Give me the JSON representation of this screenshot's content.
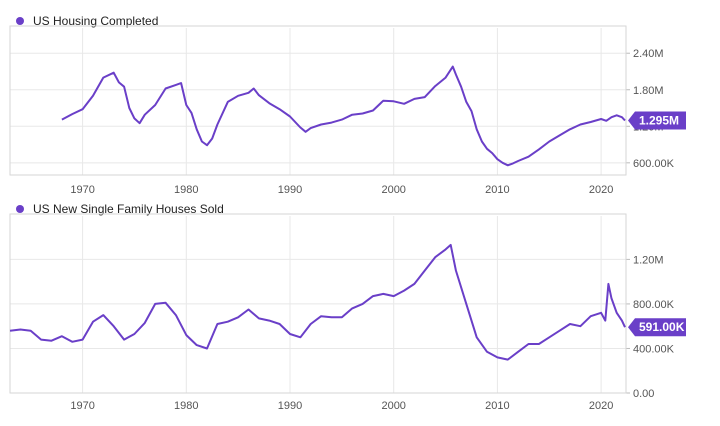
{
  "chart_data": [
    {
      "type": "line",
      "title": "US Housing Completed",
      "color": "#6a3fc8",
      "last_value_label": "1.295M",
      "xlim": [
        1963.0,
        2022.4
      ],
      "ylim": [
        400000,
        2650000
      ],
      "y_ticks": [
        {
          "value": 600000,
          "label": "600.00K"
        },
        {
          "value": 1200000,
          "label": "1.20M"
        },
        {
          "value": 1800000,
          "label": "1.80M"
        },
        {
          "value": 2400000,
          "label": "2.40M"
        }
      ],
      "x_ticks": [
        {
          "value": 1970,
          "label": "1970"
        },
        {
          "value": 1980,
          "label": "1980"
        },
        {
          "value": 1990,
          "label": "1990"
        },
        {
          "value": 2000,
          "label": "2000"
        },
        {
          "value": 2010,
          "label": "2010"
        },
        {
          "value": 2020,
          "label": "2020"
        }
      ],
      "grid": true,
      "x": [
        1968.0,
        1969.0,
        1970.0,
        1971.0,
        1972.0,
        1973.0,
        1973.5,
        1974.0,
        1974.5,
        1975.0,
        1975.5,
        1976.0,
        1977.0,
        1978.0,
        1979.0,
        1979.5,
        1980.0,
        1980.5,
        1981.0,
        1981.5,
        1982.0,
        1982.5,
        1983.0,
        1984.0,
        1985.0,
        1986.0,
        1986.5,
        1987.0,
        1988.0,
        1989.0,
        1990.0,
        1991.0,
        1991.5,
        1992.0,
        1993.0,
        1994.0,
        1995.0,
        1996.0,
        1997.0,
        1998.0,
        1999.0,
        2000.0,
        2001.0,
        2002.0,
        2003.0,
        2004.0,
        2005.0,
        2005.7,
        2006.0,
        2006.5,
        2007.0,
        2007.5,
        2008.0,
        2008.5,
        2009.0,
        2009.5,
        2010.0,
        2010.5,
        2011.0,
        2011.5,
        2012.0,
        2013.0,
        2014.0,
        2015.0,
        2016.0,
        2017.0,
        2018.0,
        2019.0,
        2020.0,
        2020.5,
        2021.0,
        2021.5,
        2022.0,
        2022.3
      ],
      "y": [
        1310000,
        1400000,
        1480000,
        1700000,
        2000000,
        2080000,
        1920000,
        1850000,
        1500000,
        1330000,
        1250000,
        1390000,
        1550000,
        1820000,
        1880000,
        1910000,
        1550000,
        1420000,
        1150000,
        950000,
        890000,
        1000000,
        1230000,
        1600000,
        1700000,
        1750000,
        1820000,
        1710000,
        1580000,
        1480000,
        1360000,
        1180000,
        1110000,
        1170000,
        1230000,
        1260000,
        1310000,
        1390000,
        1410000,
        1460000,
        1620000,
        1610000,
        1570000,
        1650000,
        1680000,
        1860000,
        2000000,
        2180000,
        2050000,
        1850000,
        1600000,
        1450000,
        1150000,
        950000,
        830000,
        760000,
        660000,
        600000,
        560000,
        590000,
        630000,
        700000,
        820000,
        950000,
        1050000,
        1150000,
        1230000,
        1270000,
        1320000,
        1290000,
        1350000,
        1380000,
        1350000,
        1295000
      ]
    },
    {
      "type": "line",
      "title": "US New Single Family Houses Sold",
      "color": "#6a3fc8",
      "last_value_label": "591.00K",
      "xlim": [
        1963.0,
        2022.4
      ],
      "ylim": [
        0,
        1500000
      ],
      "y_ticks": [
        {
          "value": 0,
          "label": "0.00"
        },
        {
          "value": 400000,
          "label": "400.00K"
        },
        {
          "value": 800000,
          "label": "800.00K"
        },
        {
          "value": 1200000,
          "label": "1.20M"
        }
      ],
      "x_ticks": [
        {
          "value": 1970,
          "label": "1970"
        },
        {
          "value": 1980,
          "label": "1980"
        },
        {
          "value": 1990,
          "label": "1990"
        },
        {
          "value": 2000,
          "label": "2000"
        },
        {
          "value": 2010,
          "label": "2010"
        },
        {
          "value": 2020,
          "label": "2020"
        }
      ],
      "grid": true,
      "x": [
        1963.0,
        1964.0,
        1965.0,
        1966.0,
        1967.0,
        1968.0,
        1969.0,
        1970.0,
        1971.0,
        1972.0,
        1973.0,
        1974.0,
        1975.0,
        1976.0,
        1977.0,
        1978.0,
        1979.0,
        1980.0,
        1981.0,
        1982.0,
        1983.0,
        1984.0,
        1985.0,
        1986.0,
        1987.0,
        1988.0,
        1989.0,
        1990.0,
        1991.0,
        1992.0,
        1993.0,
        1994.0,
        1995.0,
        1996.0,
        1997.0,
        1998.0,
        1999.0,
        2000.0,
        2001.0,
        2002.0,
        2003.0,
        2004.0,
        2005.0,
        2005.5,
        2006.0,
        2007.0,
        2008.0,
        2009.0,
        2010.0,
        2011.0,
        2012.0,
        2013.0,
        2014.0,
        2015.0,
        2016.0,
        2017.0,
        2018.0,
        2019.0,
        2020.0,
        2020.4,
        2020.7,
        2021.0,
        2021.5,
        2022.0,
        2022.3
      ],
      "y": [
        560000,
        570000,
        560000,
        480000,
        470000,
        510000,
        460000,
        480000,
        640000,
        700000,
        600000,
        480000,
        530000,
        630000,
        800000,
        810000,
        700000,
        520000,
        430000,
        400000,
        620000,
        640000,
        680000,
        750000,
        670000,
        650000,
        620000,
        530000,
        500000,
        620000,
        690000,
        680000,
        680000,
        760000,
        800000,
        870000,
        890000,
        870000,
        920000,
        980000,
        1100000,
        1220000,
        1290000,
        1330000,
        1100000,
        800000,
        500000,
        370000,
        320000,
        300000,
        370000,
        440000,
        440000,
        500000,
        560000,
        620000,
        600000,
        690000,
        720000,
        650000,
        980000,
        850000,
        720000,
        650000,
        591000
      ]
    }
  ]
}
